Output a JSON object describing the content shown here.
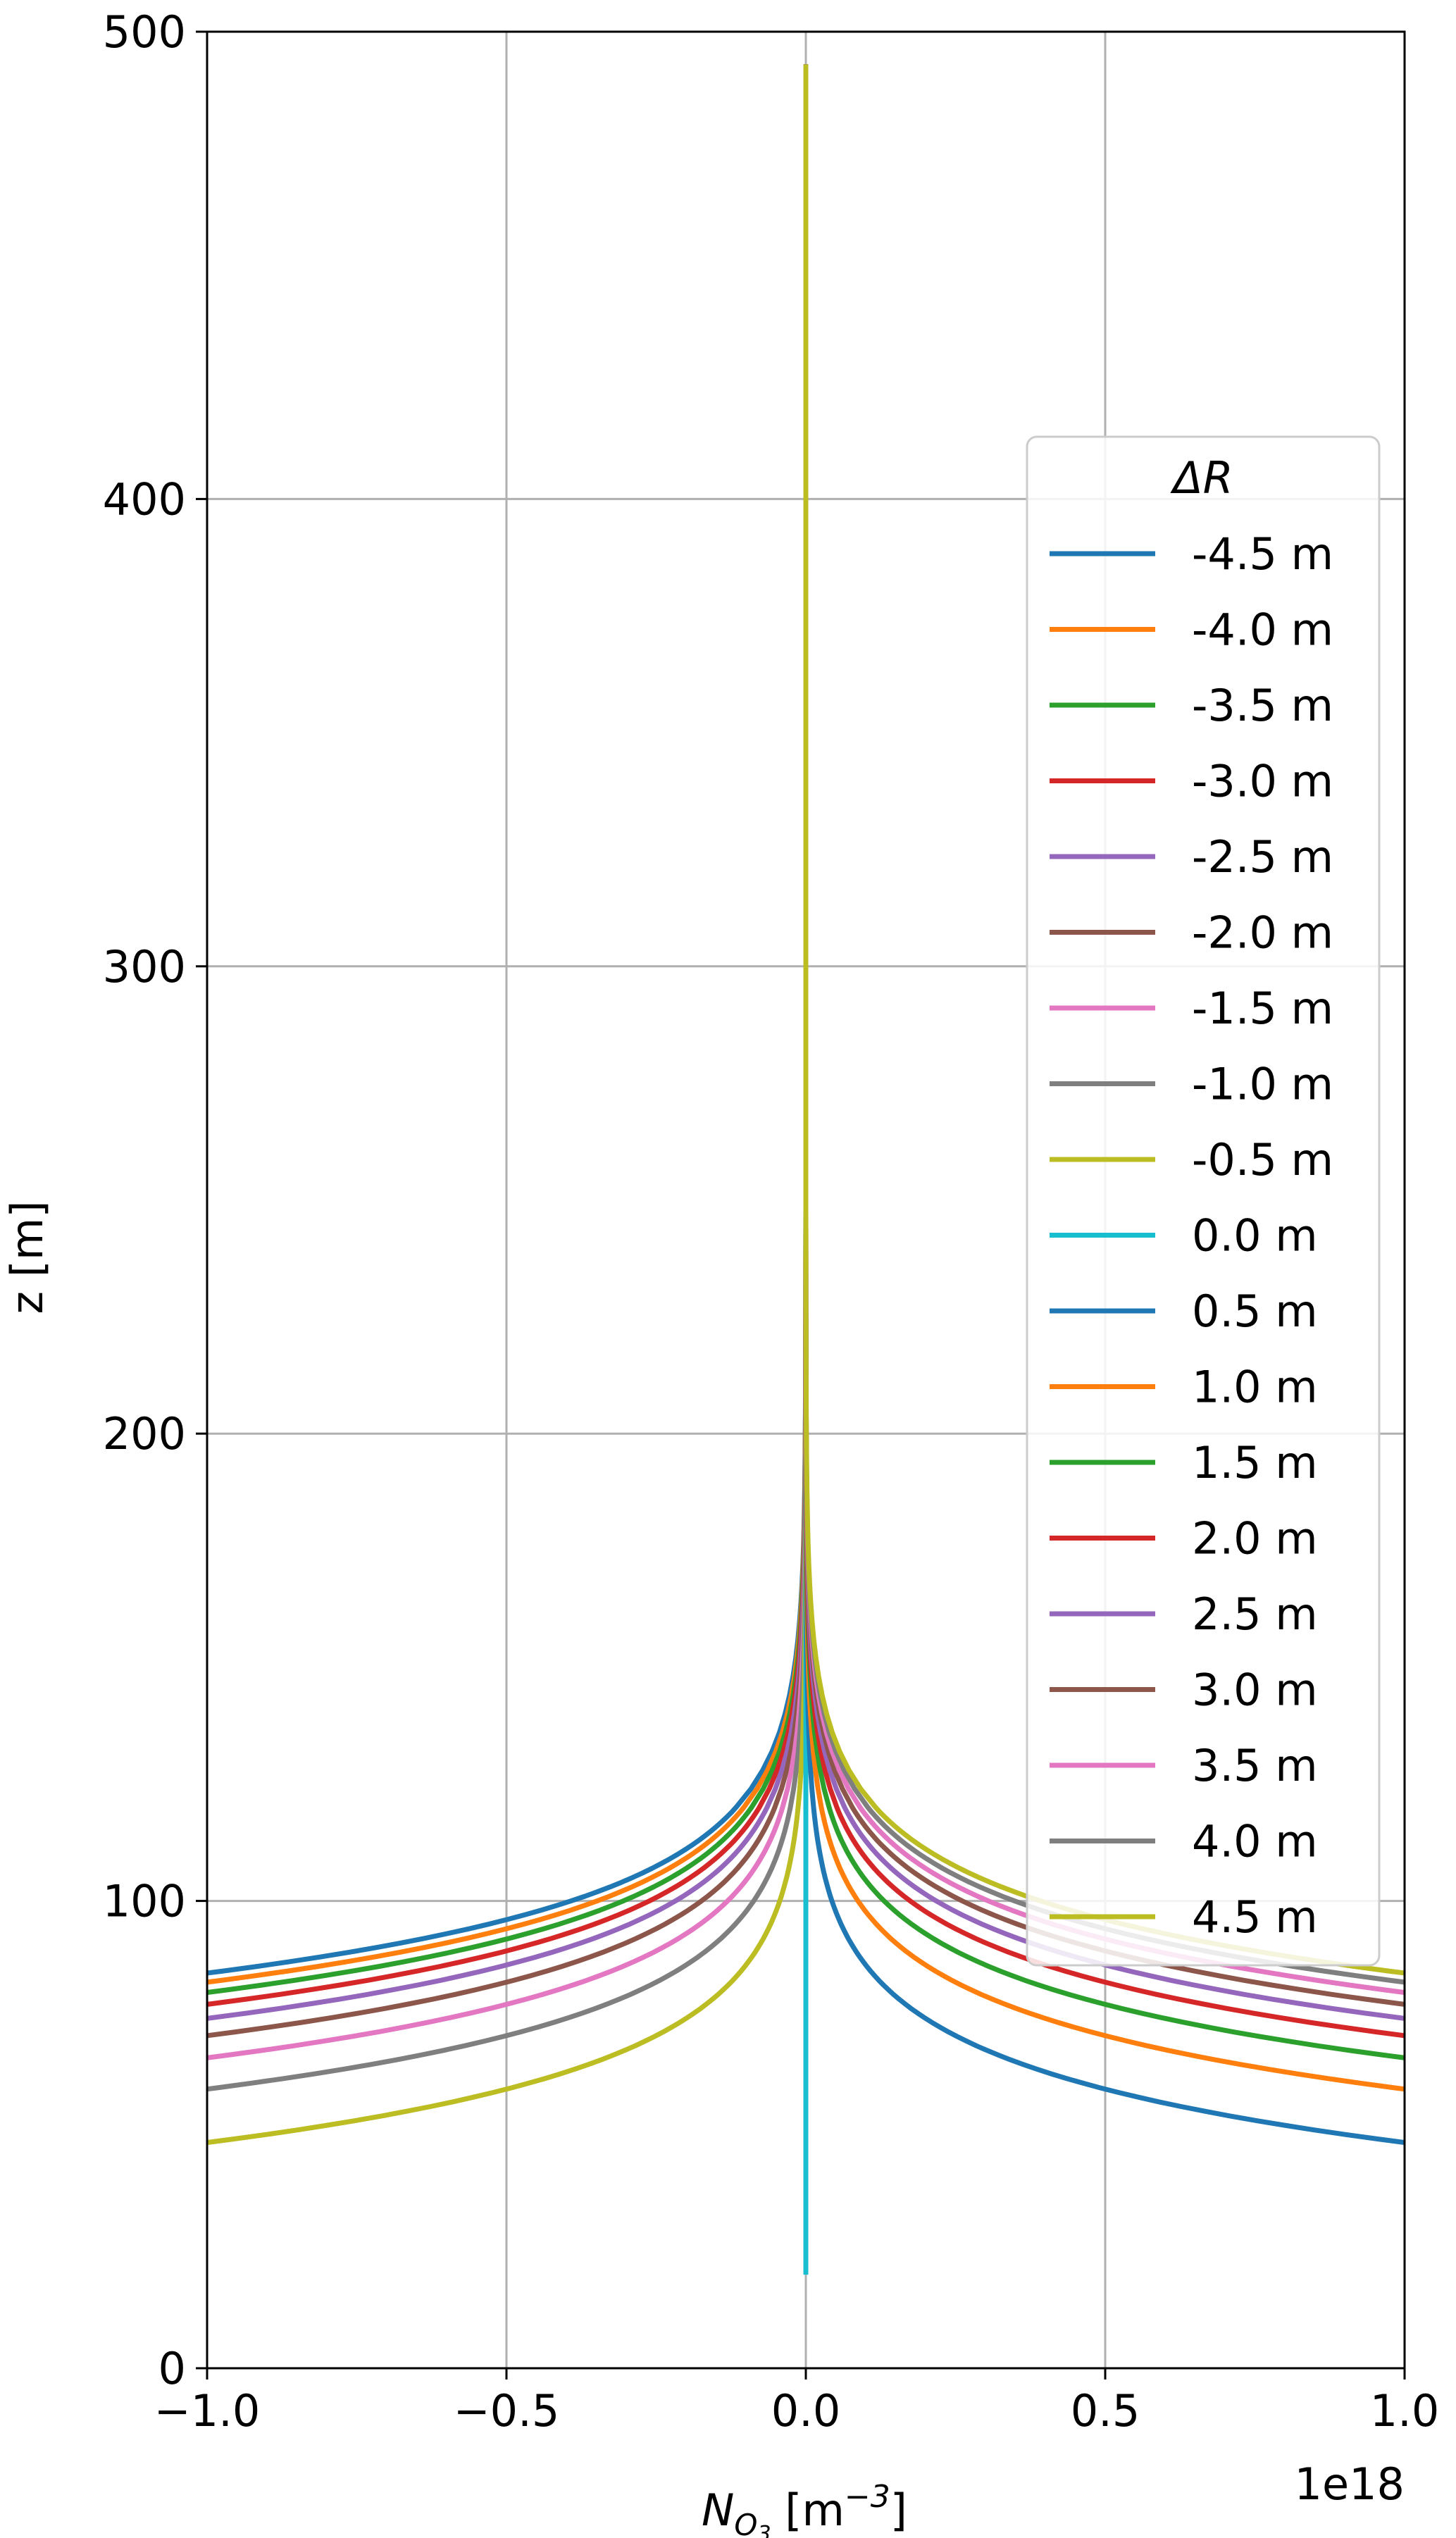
{
  "chart_data": {
    "type": "line",
    "ylabel": "z [m]",
    "xlabel": {
      "prefix": "N",
      "subscript_main": "O",
      "subscript_sub": "3",
      "unit_open": " [m",
      "unit_exp": "−3",
      "unit_close": "]"
    },
    "offset_text": "1e18",
    "xlim": [
      -1.0,
      1.0
    ],
    "ylim": [
      0,
      500
    ],
    "x_ticks": [
      -1.0,
      -0.5,
      0.0,
      0.5,
      1.0
    ],
    "x_tick_labels": [
      "−1.0",
      "−0.5",
      "0.0",
      "0.5",
      "1.0"
    ],
    "y_ticks": [
      0,
      100,
      200,
      300,
      400,
      500
    ],
    "y_tick_labels": [
      "0",
      "100",
      "200",
      "300",
      "400",
      "500"
    ],
    "grid": true,
    "legend_title": "ΔR",
    "legend_placement": "right",
    "z_range": [
      20,
      493
    ],
    "x_scale_unit": "1e18",
    "series": [
      {
        "name": "-4.5 m",
        "color": "#1f77b4",
        "dR": -4.5
      },
      {
        "name": "-4.0 m",
        "color": "#ff7f0e",
        "dR": -4.0
      },
      {
        "name": "-3.5 m",
        "color": "#2ca02c",
        "dR": -3.5
      },
      {
        "name": "-3.0 m",
        "color": "#d62728",
        "dR": -3.0
      },
      {
        "name": "-2.5 m",
        "color": "#9467bd",
        "dR": -2.5
      },
      {
        "name": "-2.0 m",
        "color": "#8c564b",
        "dR": -2.0
      },
      {
        "name": "-1.5 m",
        "color": "#e377c2",
        "dR": -1.5
      },
      {
        "name": "-1.0 m",
        "color": "#7f7f7f",
        "dR": -1.0
      },
      {
        "name": "-0.5 m",
        "color": "#bcbd22",
        "dR": -0.5
      },
      {
        "name": "0.0 m",
        "color": "#17becf",
        "dR": 0.0
      },
      {
        "name": "0.5 m",
        "color": "#1f77b4",
        "dR": 0.5
      },
      {
        "name": "1.0 m",
        "color": "#ff7f0e",
        "dR": 1.0
      },
      {
        "name": "1.5 m",
        "color": "#2ca02c",
        "dR": 1.5
      },
      {
        "name": "2.0 m",
        "color": "#d62728",
        "dR": 2.0
      },
      {
        "name": "2.5 m",
        "color": "#9467bd",
        "dR": 2.5
      },
      {
        "name": "3.0 m",
        "color": "#8c564b",
        "dR": 3.0
      },
      {
        "name": "3.5 m",
        "color": "#e377c2",
        "dR": 3.5
      },
      {
        "name": "4.0 m",
        "color": "#7f7f7f",
        "dR": 4.0
      },
      {
        "name": "4.5 m",
        "color": "#bcbd22",
        "dR": 4.5
      }
    ]
  }
}
